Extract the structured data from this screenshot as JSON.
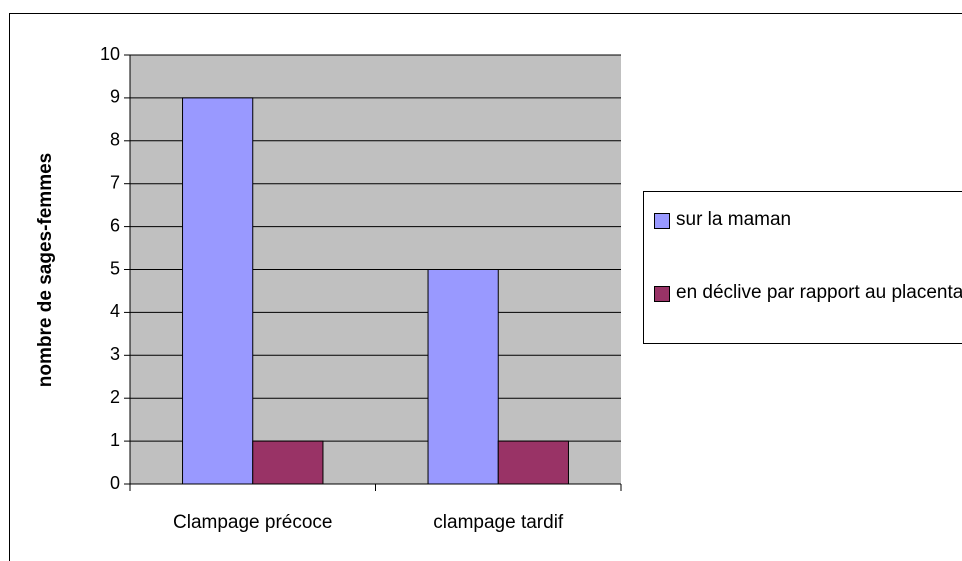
{
  "chart_data": {
    "type": "bar",
    "y_label": "nombre de sages-femmes",
    "categories": [
      "Clampage précoce",
      "clampage tardif"
    ],
    "series": [
      {
        "name": "sur la maman",
        "color": "#9999ff",
        "values": [
          9,
          5
        ]
      },
      {
        "name": "en déclive par rapport au placenta",
        "color": "#993366",
        "values": [
          1,
          1
        ]
      }
    ],
    "ylim": [
      0,
      10
    ],
    "yticks": [
      0,
      1,
      2,
      3,
      4,
      5,
      6,
      7,
      8,
      9,
      10
    ],
    "grid": true,
    "legend": "right"
  }
}
